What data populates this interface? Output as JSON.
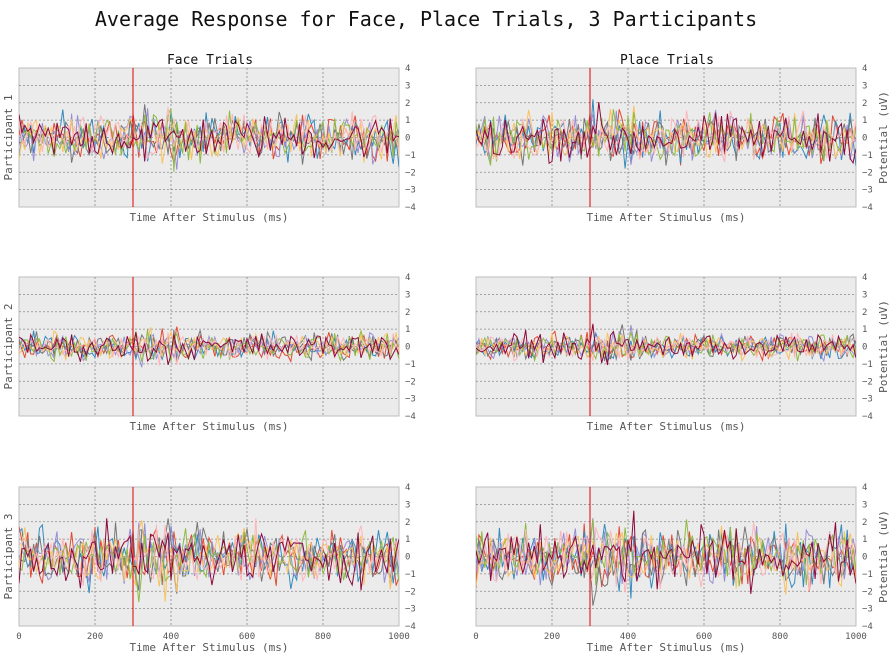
{
  "chart_data": {
    "type": "line",
    "title": "Average Response for Face, Place Trials, 3 Participants",
    "columns": [
      "Face Trials",
      "Place Trials"
    ],
    "rows": [
      "Participant 1",
      "Participant 2",
      "Participant 3"
    ],
    "xlabel": "Time After Stimulus (ms)",
    "ylabel": "Potential (uV)",
    "xlim": [
      0,
      1000
    ],
    "ylim": [
      -4,
      4
    ],
    "xticks": [
      0,
      200,
      400,
      600,
      800,
      1000
    ],
    "yticks": [
      -4,
      -3,
      -2,
      -1,
      0,
      1,
      2,
      3,
      4
    ],
    "stimulus_marker_x": 300,
    "grid": true,
    "series_colors": [
      "#e24a33",
      "#348abd",
      "#988ed5",
      "#777777",
      "#fbc15e",
      "#8eba42",
      "#ffb5b8",
      "#8b0a3c"
    ],
    "marker_color": "#e00000",
    "panels": [
      {
        "row": 0,
        "col": 0,
        "nseries": 8,
        "amplitude": 0.75
      },
      {
        "row": 0,
        "col": 1,
        "nseries": 8,
        "amplitude": 0.8
      },
      {
        "row": 1,
        "col": 0,
        "nseries": 8,
        "amplitude": 0.45
      },
      {
        "row": 1,
        "col": 1,
        "nseries": 8,
        "amplitude": 0.45
      },
      {
        "row": 2,
        "col": 0,
        "nseries": 8,
        "amplitude": 0.95
      },
      {
        "row": 2,
        "col": 1,
        "nseries": 8,
        "amplitude": 1.0
      }
    ]
  }
}
